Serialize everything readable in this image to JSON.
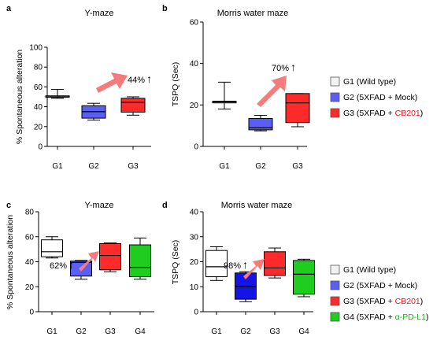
{
  "colors": {
    "wild_type": "#f2f2f2",
    "mock": "#5a5ef5",
    "mock_dark": "#1414e6",
    "cb201": "#ff2a2a",
    "pdl1": "#1fcc1f",
    "arrow": "#f47c7c",
    "cb201_text": "#e8141b",
    "pdl1_text": "#19b219"
  },
  "legend_top": {
    "items": [
      {
        "prefix": "G1 (Wild type)",
        "highlight": "",
        "suffix": "",
        "color_key": "wild_type"
      },
      {
        "prefix": "G2 (5XFAD + Mock)",
        "highlight": "",
        "suffix": "",
        "color_key": "mock"
      },
      {
        "prefix": "G3 (5XFAD + ",
        "highlight": "CB201",
        "suffix": ")",
        "color_key": "cb201",
        "highlight_key": "cb201_text"
      }
    ]
  },
  "legend_bottom": {
    "items": [
      {
        "prefix": "G1 (Wild type)",
        "highlight": "",
        "suffix": "",
        "color_key": "wild_type"
      },
      {
        "prefix": "G2 (5XFAD + Mock)",
        "highlight": "",
        "suffix": "",
        "color_key": "mock"
      },
      {
        "prefix": "G3 (5XFAD + ",
        "highlight": "CB201",
        "suffix": ")",
        "color_key": "cb201",
        "highlight_key": "cb201_text"
      },
      {
        "prefix": "G4 (5XFAD + ",
        "highlight": "α-PD-L1",
        "suffix": ")",
        "color_key": "pdl1",
        "highlight_key": "pdl1_text"
      }
    ]
  },
  "chart_data": [
    {
      "panel": "a",
      "type": "box",
      "title": "Y-maze",
      "ylabel": "% Spontaneous alteration",
      "ylim": [
        0,
        100
      ],
      "yticks": [
        0,
        20,
        40,
        60,
        80,
        100
      ],
      "categories": [
        "G1",
        "G2",
        "G3"
      ],
      "boxes": [
        {
          "name": "G1",
          "min": 48.5,
          "q1": 49.5,
          "median": 50,
          "q3": 51,
          "max": 57.5,
          "color_key": "wild_type"
        },
        {
          "name": "G2",
          "min": 26.5,
          "q1": 28.5,
          "median": 35,
          "q3": 41,
          "max": 43.5,
          "color_key": "mock"
        },
        {
          "name": "G3",
          "min": 31.5,
          "q1": 34.5,
          "median": 44.5,
          "q3": 48.5,
          "max": 50,
          "color_key": "cb201"
        }
      ],
      "annotation": {
        "text": "44%",
        "symbol": "↑"
      }
    },
    {
      "panel": "b",
      "type": "box",
      "title": "Morris water maze",
      "ylabel": "TSPQ (Sec)",
      "ylim": [
        0,
        60
      ],
      "yticks": [
        0,
        20,
        40,
        60
      ],
      "categories": [
        "G1",
        "G2",
        "G3"
      ],
      "boxes": [
        {
          "name": "G1",
          "min": 18,
          "q1": 21,
          "median": 21.5,
          "q3": 21.8,
          "max": 31,
          "color_key": "wild_type"
        },
        {
          "name": "G2",
          "min": 7.5,
          "q1": 8,
          "median": 9,
          "q3": 13.5,
          "max": 15,
          "color_key": "mock"
        },
        {
          "name": "G3",
          "min": 9.5,
          "q1": 11.5,
          "median": 21,
          "q3": 25.5,
          "max": 25.5,
          "color_key": "cb201"
        }
      ],
      "annotation": {
        "text": "70%",
        "symbol": "↑"
      }
    },
    {
      "panel": "c",
      "type": "box",
      "title": "Y-maze",
      "ylabel": "% Spontaneous alteration",
      "ylim": [
        0,
        80
      ],
      "yticks": [
        0,
        20,
        40,
        60,
        80
      ],
      "categories": [
        "G1",
        "G2",
        "G3",
        "G4"
      ],
      "boxes": [
        {
          "name": "G1",
          "min": 43,
          "q1": 44,
          "median": 48,
          "q3": 57.5,
          "max": 60,
          "color_key": "wild_type"
        },
        {
          "name": "G2",
          "min": 26,
          "q1": 28.5,
          "median": 39.5,
          "q3": 40.5,
          "max": 41,
          "color_key": "mock"
        },
        {
          "name": "G3",
          "min": 32,
          "q1": 33.5,
          "median": 45,
          "q3": 54.5,
          "max": 55,
          "color_key": "cb201"
        },
        {
          "name": "G4",
          "min": 26,
          "q1": 28,
          "median": 35.5,
          "q3": 53.5,
          "max": 59,
          "color_key": "pdl1"
        }
      ],
      "annotation": {
        "text": "62%",
        "symbol": "↑"
      }
    },
    {
      "panel": "d",
      "type": "box",
      "title": "Morris water maze",
      "ylabel": "TSPQ (Sec)",
      "ylim": [
        0,
        40
      ],
      "yticks": [
        0,
        10,
        20,
        30,
        40
      ],
      "categories": [
        "G1",
        "G2",
        "G3",
        "G4"
      ],
      "boxes": [
        {
          "name": "G1",
          "min": 12.5,
          "q1": 14,
          "median": 18,
          "q3": 24.5,
          "max": 26,
          "color_key": "wild_type"
        },
        {
          "name": "G2",
          "min": 4,
          "q1": 5,
          "median": 10,
          "q3": 15.5,
          "max": 16,
          "color_key": "mock_dark"
        },
        {
          "name": "G3",
          "min": 13.5,
          "q1": 14.5,
          "median": 17.5,
          "q3": 24,
          "max": 25.5,
          "color_key": "cb201"
        },
        {
          "name": "G4",
          "min": 6,
          "q1": 7,
          "median": 15,
          "q3": 20.5,
          "max": 21,
          "color_key": "pdl1"
        }
      ],
      "annotation": {
        "text": "98%",
        "symbol": "↑"
      }
    }
  ]
}
